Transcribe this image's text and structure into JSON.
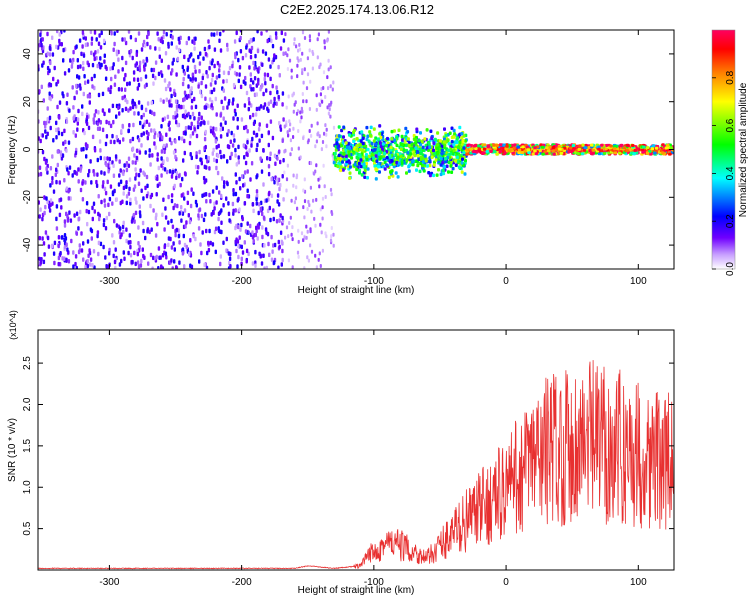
{
  "title": "C2E2.2025.174.13.06.R12",
  "chart_data": [
    {
      "type": "heatmap",
      "xlabel": "Height of straight line (km)",
      "ylabel": "Frequency (Hz)",
      "xlim": [
        -354,
        127
      ],
      "ylim": [
        -50,
        50
      ],
      "x_ticks": [
        -300,
        -200,
        -100,
        0,
        100
      ],
      "x_tick_labels": [
        "-300",
        "-200",
        "-100",
        "0",
        "100"
      ],
      "y_ticks": [
        -40,
        -20,
        0,
        20,
        40
      ],
      "y_tick_labels": [
        "-40",
        "-20",
        "0",
        "20",
        "40"
      ],
      "colorbar": {
        "label": "Normalized spectral amplitude",
        "range": [
          0,
          1
        ],
        "ticks": [
          0.0,
          0.2,
          0.4,
          0.6,
          0.8
        ],
        "tick_labels": [
          "0.0",
          "0.2",
          "0.4",
          "0.6",
          "0.8"
        ],
        "colors": [
          "#ffffff",
          "#b070ff",
          "#7000ff",
          "#0000ff",
          "#00ffff",
          "#00ff00",
          "#ffff00",
          "#ff8000",
          "#ff0000",
          "#ff0060"
        ]
      },
      "regions": [
        {
          "x_range": [
            -354,
            -168
          ],
          "freq_range": [
            -50,
            50
          ],
          "amplitude": 0.15,
          "pattern": "scattered noise"
        },
        {
          "x_range": [
            -168,
            -130
          ],
          "freq_range": [
            -50,
            50
          ],
          "amplitude": 0.08,
          "pattern": "sparse noise"
        },
        {
          "x_range": [
            -130,
            -30
          ],
          "freq_range": [
            -10,
            8
          ],
          "amplitude": 0.5,
          "pattern": "broad band"
        },
        {
          "x_range": [
            -30,
            127
          ],
          "freq_range": [
            -2,
            2
          ],
          "amplitude": 0.9,
          "pattern": "narrow band at 0 Hz"
        }
      ],
      "grid": false
    },
    {
      "type": "line",
      "xlabel": "Height of straight line (km)",
      "ylabel": "SNR (10 * v/v)",
      "y_multiplier": "(x10^4)",
      "xlim": [
        -354,
        127
      ],
      "ylim": [
        0,
        2.9
      ],
      "x_ticks": [
        -300,
        -200,
        -100,
        0,
        100
      ],
      "x_tick_labels": [
        "-300",
        "-200",
        "-100",
        "0",
        "100"
      ],
      "y_ticks": [
        0.5,
        1.0,
        1.5,
        2.0,
        2.5
      ],
      "y_tick_labels": [
        "0.5",
        "1.0",
        "1.5",
        "2.0",
        "2.5"
      ],
      "series": [
        {
          "color": "#e83030",
          "x": [
            -354,
            -300,
            -250,
            -200,
            -160,
            -150,
            -130,
            -110,
            -100,
            -90,
            -80,
            -70,
            -60,
            -50,
            -40,
            -30,
            -20,
            -10,
            0,
            10,
            20,
            30,
            40,
            50,
            60,
            70,
            80,
            90,
            100,
            110,
            120,
            127
          ],
          "y": [
            0.02,
            0.02,
            0.02,
            0.02,
            0.02,
            0.05,
            0.02,
            0.05,
            0.25,
            0.32,
            0.3,
            0.22,
            0.14,
            0.3,
            0.45,
            0.6,
            0.72,
            0.85,
            1.0,
            1.15,
            1.3,
            1.45,
            1.5,
            1.5,
            1.55,
            1.55,
            1.5,
            1.45,
            1.4,
            1.35,
            1.3,
            1.3
          ]
        }
      ],
      "grid": false
    }
  ]
}
